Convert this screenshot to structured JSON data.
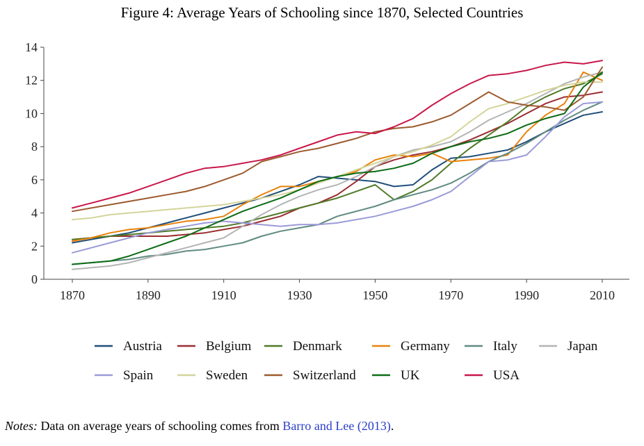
{
  "title": "Figure 4: Average Years of Schooling since 1870, Selected Countries",
  "notes": {
    "label": "Notes:",
    "text_before": " Data on average years of schooling comes from ",
    "citation": "Barro and Lee (2013)",
    "text_after": "."
  },
  "chart_data": {
    "type": "line",
    "title": "Figure 4: Average Years of Schooling since 1870, Selected Countries",
    "xlabel": "",
    "ylabel": "",
    "xlim": [
      1870,
      2010
    ],
    "ylim": [
      0,
      14
    ],
    "xticks": [
      1870,
      1890,
      1910,
      1930,
      1950,
      1970,
      1990,
      2010
    ],
    "yticks": [
      0,
      2,
      4,
      6,
      8,
      10,
      12,
      14
    ],
    "grid": false,
    "legend_position": "bottom",
    "x": [
      1870,
      1875,
      1880,
      1885,
      1890,
      1895,
      1900,
      1905,
      1910,
      1915,
      1920,
      1925,
      1930,
      1935,
      1940,
      1945,
      1950,
      1955,
      1960,
      1965,
      1970,
      1975,
      1980,
      1985,
      1990,
      1995,
      2000,
      2005,
      2010
    ],
    "series": [
      {
        "name": "Austria",
        "color": "#1f4e79",
        "values": [
          2.2,
          2.4,
          2.6,
          2.8,
          3.1,
          3.4,
          3.7,
          4.0,
          4.3,
          4.6,
          4.9,
          5.3,
          5.7,
          6.2,
          6.1,
          6.0,
          5.9,
          5.6,
          5.7,
          6.6,
          7.3,
          7.4,
          7.6,
          7.8,
          8.3,
          8.9,
          9.4,
          9.9,
          10.1
        ]
      },
      {
        "name": "Belgium",
        "color": "#9b2d30",
        "values": [
          2.4,
          2.5,
          2.6,
          2.6,
          2.6,
          2.6,
          2.7,
          2.8,
          3.0,
          3.2,
          3.5,
          3.8,
          4.3,
          4.6,
          5.1,
          5.9,
          6.8,
          7.2,
          7.5,
          7.7,
          8.0,
          8.4,
          8.9,
          9.4,
          10.0,
          10.6,
          11.0,
          11.1,
          11.3
        ]
      },
      {
        "name": "Denmark",
        "color": "#4f7a28",
        "values": [
          2.4,
          2.5,
          2.6,
          2.7,
          2.8,
          2.9,
          3.0,
          3.1,
          3.2,
          3.4,
          3.7,
          4.0,
          4.3,
          4.6,
          4.9,
          5.3,
          5.7,
          4.8,
          5.3,
          6.0,
          7.0,
          7.9,
          8.7,
          9.5,
          10.4,
          11.0,
          11.5,
          11.8,
          12.4
        ]
      },
      {
        "name": "Germany",
        "color": "#e8820c",
        "values": [
          2.3,
          2.5,
          2.8,
          3.0,
          3.1,
          3.3,
          3.5,
          3.6,
          3.8,
          4.5,
          5.1,
          5.6,
          5.6,
          5.9,
          6.2,
          6.5,
          7.2,
          7.5,
          7.4,
          7.6,
          7.1,
          7.2,
          7.3,
          7.5,
          8.9,
          9.9,
          10.6,
          12.5,
          12.0
        ]
      },
      {
        "name": "Italy",
        "color": "#5f8a80",
        "values": [
          0.9,
          1.0,
          1.1,
          1.2,
          1.4,
          1.5,
          1.7,
          1.8,
          2.0,
          2.2,
          2.6,
          2.9,
          3.1,
          3.3,
          3.8,
          4.1,
          4.4,
          4.8,
          5.1,
          5.4,
          5.8,
          6.4,
          7.1,
          7.6,
          8.2,
          8.9,
          9.6,
          10.2,
          10.7
        ]
      },
      {
        "name": "Japan",
        "color": "#b4b4b4",
        "values": [
          0.6,
          0.7,
          0.8,
          1.0,
          1.3,
          1.6,
          1.9,
          2.2,
          2.5,
          3.2,
          3.9,
          4.5,
          5.0,
          5.4,
          5.7,
          6.2,
          6.8,
          7.4,
          7.8,
          8.0,
          8.3,
          8.9,
          9.6,
          10.1,
          10.6,
          11.2,
          11.8,
          12.2,
          12.5
        ]
      },
      {
        "name": "Spain",
        "color": "#9a9ad8",
        "values": [
          1.6,
          1.9,
          2.2,
          2.5,
          2.8,
          3.0,
          3.2,
          3.4,
          3.5,
          3.4,
          3.3,
          3.2,
          3.3,
          3.3,
          3.4,
          3.6,
          3.8,
          4.1,
          4.4,
          4.8,
          5.3,
          6.2,
          7.1,
          7.2,
          7.5,
          8.6,
          9.8,
          10.6,
          10.7
        ]
      },
      {
        "name": "Sweden",
        "color": "#d4d49a",
        "values": [
          3.6,
          3.7,
          3.9,
          4.0,
          4.1,
          4.2,
          4.3,
          4.4,
          4.5,
          4.7,
          4.9,
          5.1,
          5.4,
          5.8,
          6.2,
          6.6,
          7.0,
          7.4,
          7.7,
          8.1,
          8.6,
          9.5,
          10.3,
          10.6,
          11.0,
          11.4,
          11.7,
          11.9,
          11.9
        ]
      },
      {
        "name": "Switzerland",
        "color": "#9c5a2e",
        "values": [
          4.1,
          4.3,
          4.5,
          4.7,
          4.9,
          5.1,
          5.3,
          5.6,
          6.0,
          6.4,
          7.1,
          7.4,
          7.7,
          7.9,
          8.2,
          8.5,
          8.9,
          9.1,
          9.2,
          9.5,
          9.9,
          10.6,
          11.3,
          10.7,
          10.5,
          10.4,
          10.2,
          11.0,
          12.8
        ]
      },
      {
        "name": "UK",
        "color": "#0c6c14",
        "values": [
          0.9,
          1.0,
          1.1,
          1.4,
          1.8,
          2.2,
          2.6,
          3.1,
          3.6,
          4.1,
          4.5,
          4.9,
          5.4,
          5.9,
          6.2,
          6.4,
          6.5,
          6.7,
          7.0,
          7.6,
          8.0,
          8.3,
          8.5,
          8.8,
          9.3,
          9.7,
          10.0,
          11.6,
          12.5
        ]
      },
      {
        "name": "USA",
        "color": "#c8174a",
        "values": [
          4.3,
          4.6,
          4.9,
          5.2,
          5.6,
          6.0,
          6.4,
          6.7,
          6.8,
          7.0,
          7.2,
          7.5,
          7.9,
          8.3,
          8.7,
          8.9,
          8.8,
          9.2,
          9.7,
          10.5,
          11.2,
          11.8,
          12.3,
          12.4,
          12.6,
          12.9,
          13.1,
          13.0,
          13.2
        ]
      }
    ]
  }
}
